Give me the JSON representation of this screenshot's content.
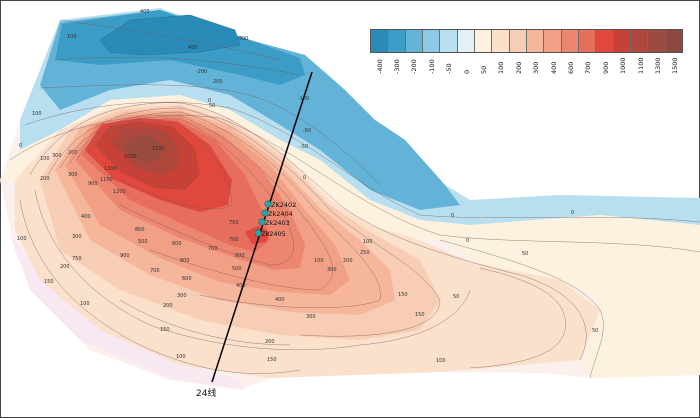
{
  "legend": {
    "values": [
      "-400",
      "-300",
      "-200",
      "-100",
      "-50",
      "0",
      "50",
      "100",
      "200",
      "300",
      "400",
      "600",
      "700",
      "900",
      "1000",
      "1100",
      "1300",
      "1500"
    ],
    "colors": [
      "#2a8bb8",
      "#3b9cc6",
      "#63b3d9",
      "#8dc8e6",
      "#b8dff0",
      "#e3f1f6",
      "#fdf2df",
      "#fbe0cc",
      "#f8cdb5",
      "#f5b69c",
      "#f19f85",
      "#ec8670",
      "#e76d5d",
      "#e0473d",
      "#c84136",
      "#b1463c",
      "#9a4a3f",
      "#8b4a41"
    ]
  },
  "contour_labels": [
    "400",
    "450",
    "100",
    "-300",
    "-200",
    "200",
    "-100",
    "0",
    "50",
    "100",
    "0",
    "-50",
    "-50",
    "0",
    "100",
    "200",
    "300",
    "1500",
    "1000",
    "900",
    "1100",
    "1200",
    "1300",
    "300",
    "200",
    "750",
    "800",
    "400",
    "300",
    "500",
    "700",
    "600",
    "600",
    "700",
    "800",
    "900",
    "750",
    "700",
    "600",
    "500",
    "400",
    "300",
    "200",
    "150",
    "200",
    "150",
    "100",
    "100",
    "150",
    "100",
    "200",
    "400",
    "300",
    "100",
    "200",
    "250",
    "300",
    "150",
    "100",
    "50",
    "150",
    "0",
    "0",
    "50",
    "100",
    "0",
    "50"
  ],
  "wells": [
    {
      "name": "ZK2402"
    },
    {
      "name": "Zk2404"
    },
    {
      "name": "Zk2403"
    },
    {
      "name": "Zk2405"
    }
  ],
  "section_line": {
    "label": "24线"
  }
}
